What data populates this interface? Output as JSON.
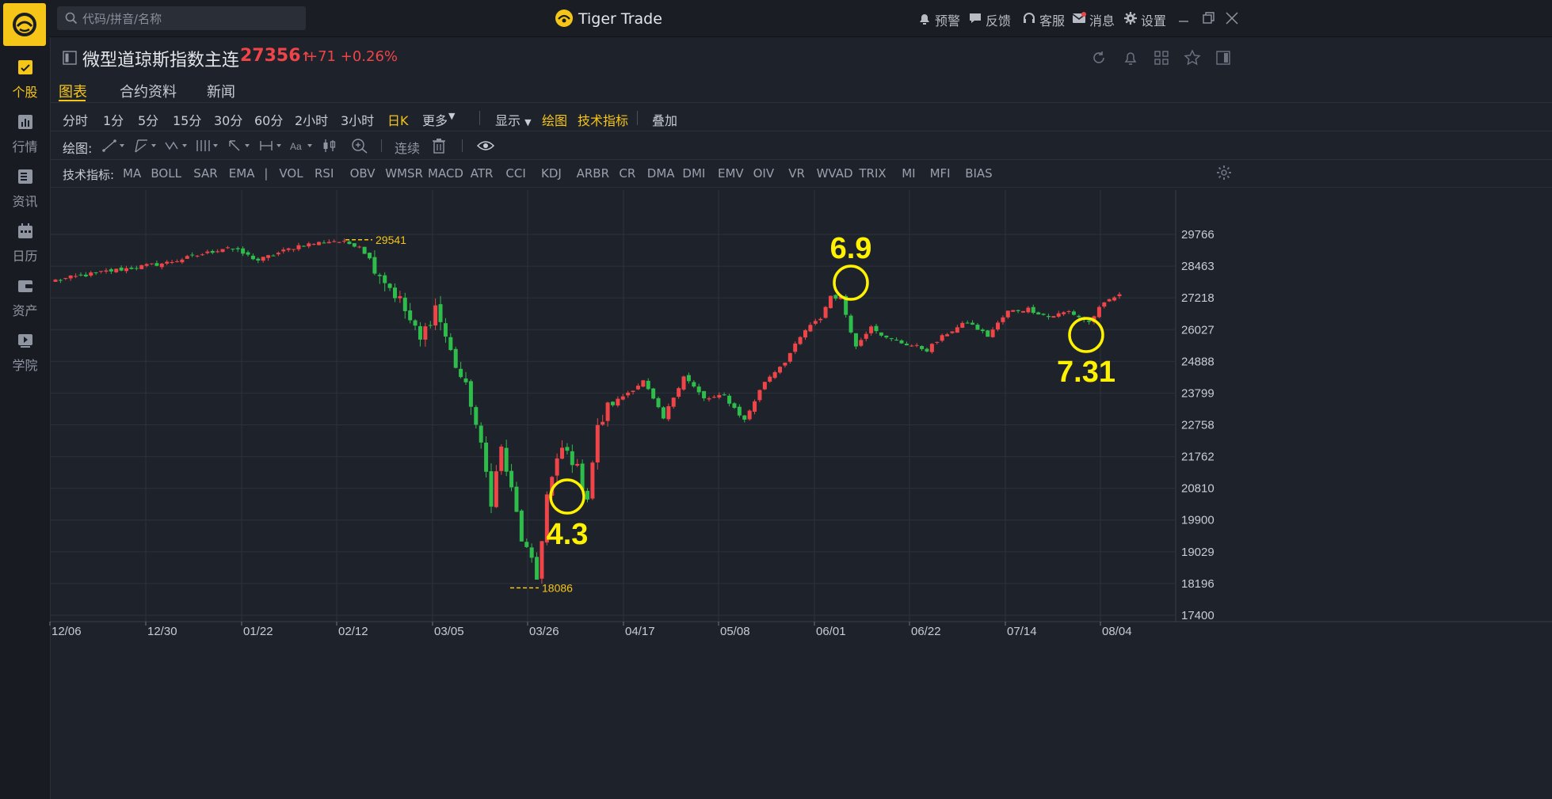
{
  "app": {
    "name": "Tiger Trade"
  },
  "search": {
    "placeholder": "代码/拼音/名称"
  },
  "top_actions": [
    {
      "label": "预警",
      "icon": "bell-icon"
    },
    {
      "label": "反馈",
      "icon": "chat-icon"
    },
    {
      "label": "客服",
      "icon": "headset-icon"
    },
    {
      "label": "消息",
      "icon": "mail-icon"
    },
    {
      "label": "设置",
      "icon": "gear-icon"
    }
  ],
  "left_nav": [
    {
      "label": "个股",
      "icon": "stock-chart-icon",
      "active": true
    },
    {
      "label": "行情",
      "icon": "market-icon"
    },
    {
      "label": "资讯",
      "icon": "news-icon"
    },
    {
      "label": "日历",
      "icon": "calendar-icon"
    },
    {
      "label": "资产",
      "icon": "wallet-icon"
    },
    {
      "label": "学院",
      "icon": "play-icon"
    }
  ],
  "instrument": {
    "name": "微型道琼斯指数主连",
    "price": "27356",
    "change": "+71",
    "change_pct": "+0.26%",
    "color_down": "#ef4548"
  },
  "tabs": [
    {
      "label": "图表",
      "active": true
    },
    {
      "label": "合约资料"
    },
    {
      "label": "新闻"
    }
  ],
  "periods": [
    "分时",
    "1分",
    "5分",
    "15分",
    "30分",
    "60分",
    "2小时",
    "3小时",
    "日K",
    "更多"
  ],
  "period_active": "日K",
  "toolbar_extra": {
    "display": "显示",
    "draw": "绘图",
    "indicators": "技术指标",
    "overlay": "叠加"
  },
  "draw_tools": {
    "label": "绘图:",
    "continuous": "连续"
  },
  "indicator_bar": {
    "label": "技术指标:",
    "items": [
      "MA",
      "BOLL",
      "SAR",
      "EMA",
      "|",
      "VOL",
      "RSI",
      "OBV",
      "WMSR",
      "MACD",
      "ATR",
      "CCI",
      "KDJ",
      "ARBR",
      "CR",
      "DMA",
      "DMI",
      "EMV",
      "OIV",
      "VR",
      "WVAD",
      "TRIX",
      "MI",
      "MFI",
      "BIAS"
    ]
  },
  "chart_data": {
    "type": "candlestick",
    "y_ticks": [
      29766,
      28463,
      27218,
      26027,
      24888,
      23799,
      22758,
      21762,
      20810,
      19900,
      19029,
      18196,
      17400
    ],
    "x_ticks": [
      "12/06",
      "12/30",
      "01/22",
      "02/12",
      "03/05",
      "03/26",
      "04/17",
      "05/08",
      "06/01",
      "06/22",
      "07/14",
      "08/04"
    ],
    "high_marker": "29541",
    "low_marker": "18086",
    "annotations": [
      "6.9",
      "4.3",
      "7.31"
    ],
    "colors": {
      "up": "#ef4548",
      "down": "#2ebd4a",
      "marker": "#f5c518",
      "annotation": "#fff200"
    },
    "grid": true,
    "log_scale": true,
    "path_note": "",
    "waypoints": [
      [
        0,
        27900
      ],
      [
        10,
        28250
      ],
      [
        22,
        28600
      ],
      [
        30,
        29000
      ],
      [
        34,
        29250
      ],
      [
        40,
        28700
      ],
      [
        48,
        29300
      ],
      [
        55,
        29500
      ],
      [
        60,
        29300
      ],
      [
        64,
        28200
      ],
      [
        68,
        27100
      ],
      [
        72,
        25600
      ],
      [
        75,
        26900
      ],
      [
        78,
        25200
      ],
      [
        82,
        23500
      ],
      [
        86,
        20500
      ],
      [
        88,
        22000
      ],
      [
        92,
        19400
      ],
      [
        95,
        18300
      ],
      [
        97,
        20600
      ],
      [
        100,
        22000
      ],
      [
        102,
        21700
      ],
      [
        105,
        20600
      ],
      [
        107,
        22600
      ],
      [
        109,
        23300
      ],
      [
        112,
        23700
      ],
      [
        116,
        24200
      ],
      [
        120,
        22950
      ],
      [
        124,
        24400
      ],
      [
        128,
        23600
      ],
      [
        132,
        23700
      ],
      [
        136,
        22900
      ],
      [
        140,
        24200
      ],
      [
        144,
        24900
      ],
      [
        148,
        26000
      ],
      [
        151,
        26450
      ],
      [
        153,
        27300
      ],
      [
        155,
        27200
      ],
      [
        158,
        25400
      ],
      [
        161,
        26200
      ],
      [
        164,
        25700
      ],
      [
        168,
        25500
      ],
      [
        172,
        25300
      ],
      [
        176,
        25900
      ],
      [
        180,
        26300
      ],
      [
        184,
        25800
      ],
      [
        188,
        26700
      ],
      [
        192,
        26800
      ],
      [
        196,
        26500
      ],
      [
        200,
        26700
      ],
      [
        204,
        26300
      ],
      [
        206,
        26800
      ],
      [
        208,
        27150
      ],
      [
        210,
        27356
      ]
    ]
  }
}
